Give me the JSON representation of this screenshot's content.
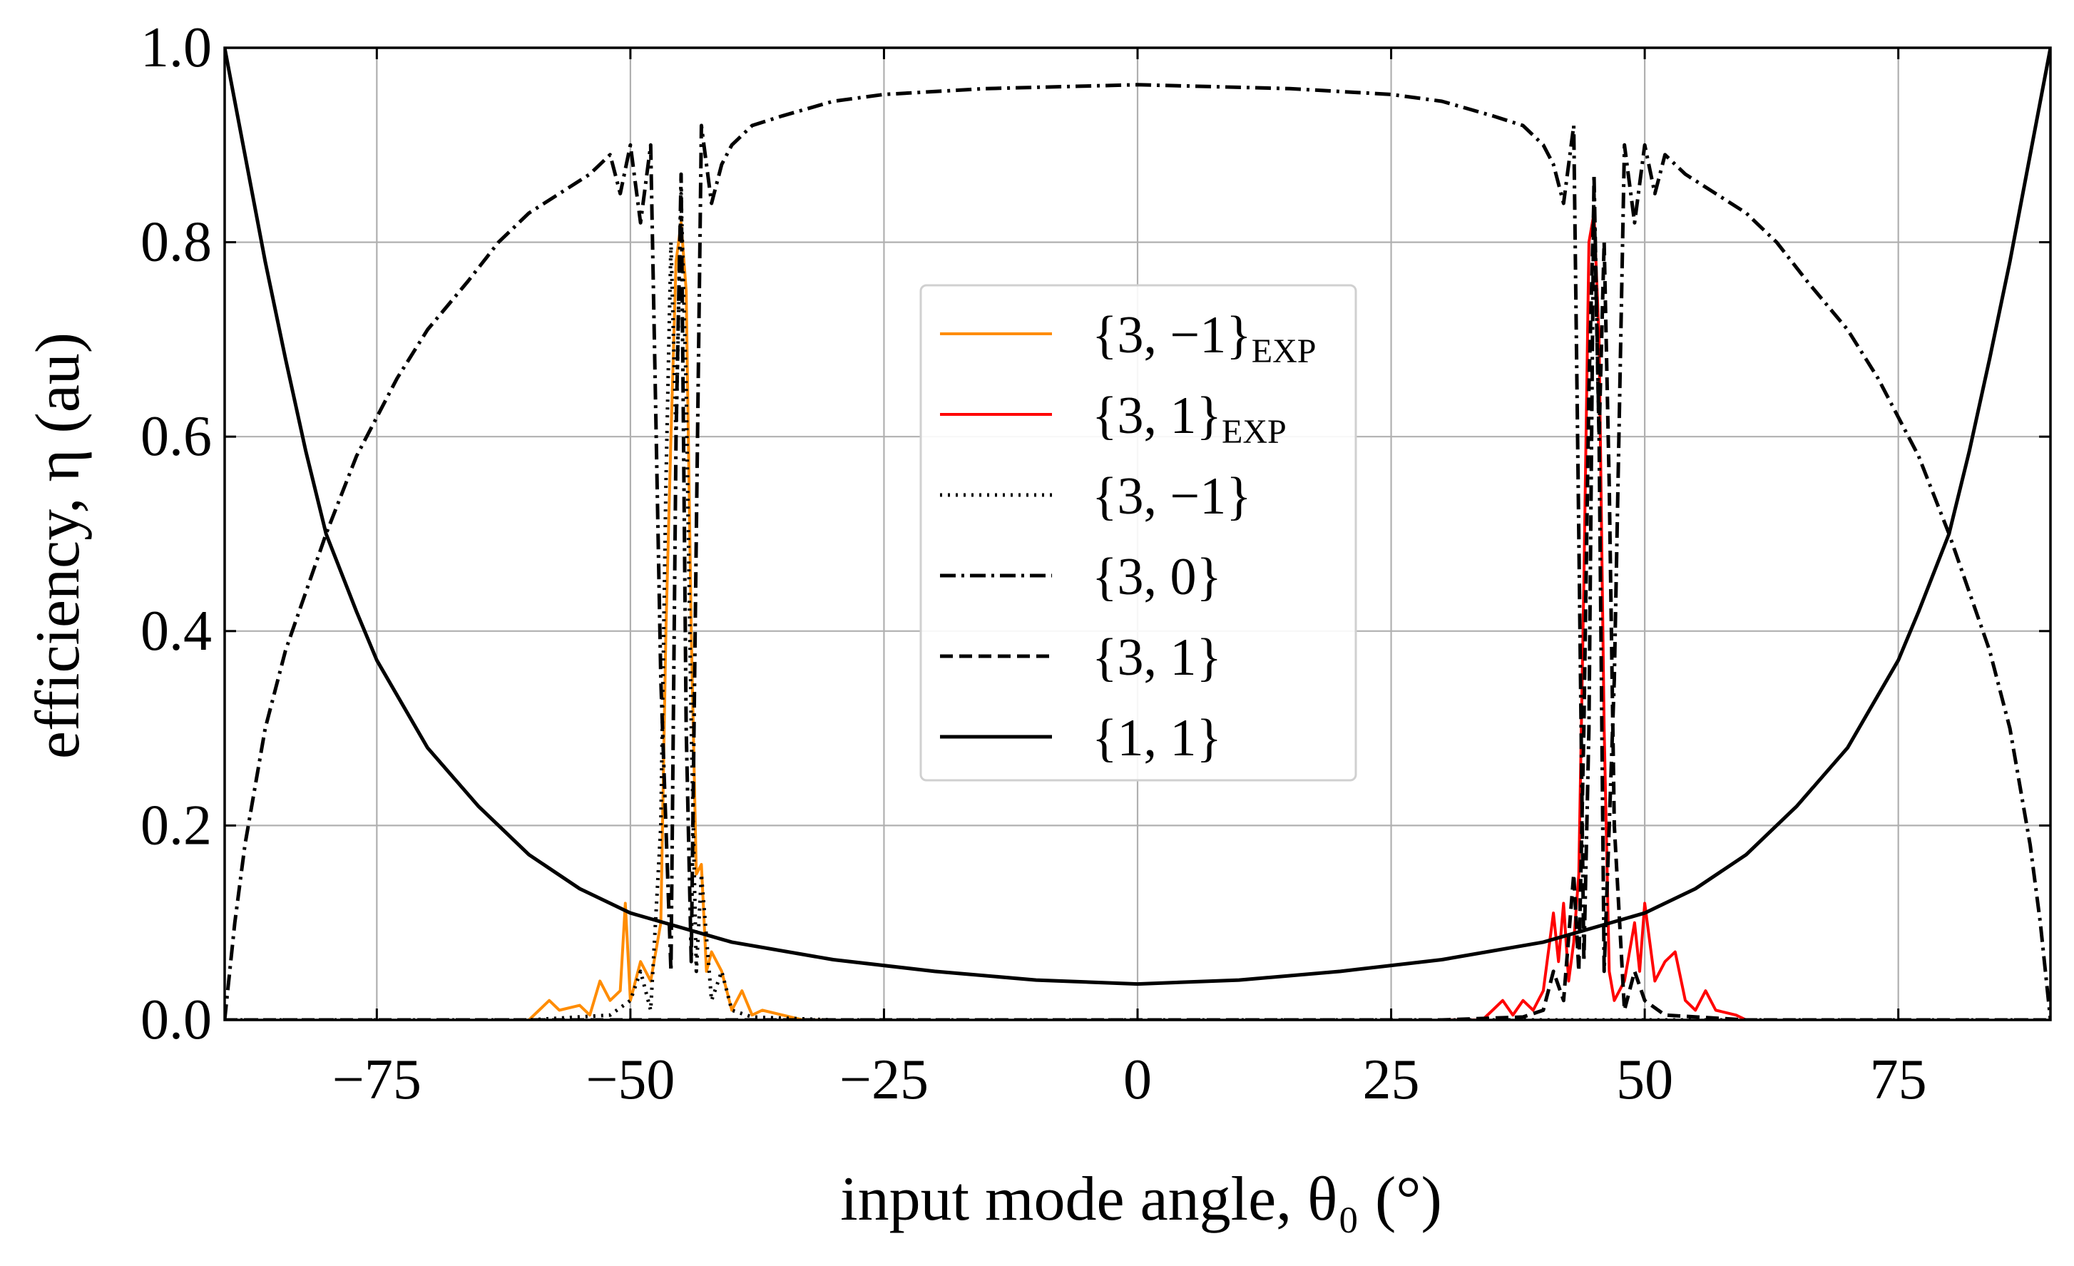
{
  "chart_data": {
    "type": "line",
    "x_label": "input mode angle, θ₀ (°)",
    "y_label": "efficiency, η (au)",
    "xlim": [
      -90,
      90
    ],
    "ylim": [
      0,
      1
    ],
    "xticks": [
      {
        "value": -75,
        "label": "−75"
      },
      {
        "value": -50,
        "label": "−50"
      },
      {
        "value": -25,
        "label": "−25"
      },
      0,
      25,
      50,
      75
    ],
    "yticks": [
      {
        "value": 0,
        "label": "0.0"
      },
      0.2,
      0.4,
      0.6,
      0.8,
      {
        "value": 1,
        "label": "1.0"
      }
    ],
    "grid": true,
    "legend_position": "center",
    "series": [
      {
        "name": "{3, −1}",
        "name_subscript": "EXP",
        "color": "#ff8c00",
        "linestyle": "solid",
        "x": [
          -60,
          -58,
          -57,
          -55,
          -54,
          -53,
          -52,
          -51,
          -50.5,
          -50,
          -49,
          -48,
          -47,
          -46.5,
          -46,
          -45.5,
          -45,
          -44.5,
          -44,
          -43.5,
          -43,
          -42.5,
          -42,
          -41,
          -40,
          -39,
          -38,
          -37,
          -35,
          -33,
          -30
        ],
        "values": [
          0,
          0.02,
          0.01,
          0.015,
          0.005,
          0.04,
          0.02,
          0.03,
          0.12,
          0.02,
          0.06,
          0.04,
          0.1,
          0.4,
          0.6,
          0.78,
          0.82,
          0.75,
          0.4,
          0.15,
          0.16,
          0.05,
          0.07,
          0.05,
          0.01,
          0.03,
          0.005,
          0.01,
          0.005,
          0,
          0
        ]
      },
      {
        "name": "{3, 1}",
        "name_subscript": "EXP",
        "color": "#ff0000",
        "linestyle": "solid",
        "x": [
          30,
          34,
          35,
          36,
          37,
          38,
          39,
          40,
          41,
          41.5,
          42,
          42.5,
          43,
          43.5,
          44,
          44.5,
          45,
          45.5,
          46,
          46.5,
          47,
          48,
          49,
          49.5,
          50,
          51,
          52,
          53,
          54,
          55,
          56,
          57,
          59,
          60
        ],
        "values": [
          0,
          0,
          0.01,
          0.02,
          0.005,
          0.02,
          0.01,
          0.03,
          0.11,
          0.06,
          0.12,
          0.04,
          0.08,
          0.15,
          0.45,
          0.8,
          0.83,
          0.7,
          0.3,
          0.05,
          0.02,
          0.04,
          0.1,
          0.05,
          0.12,
          0.04,
          0.06,
          0.07,
          0.02,
          0.01,
          0.03,
          0.01,
          0.005,
          0
        ]
      },
      {
        "name": "{3, −1}",
        "color": "#000000",
        "linestyle": "dotted",
        "x": [
          -90,
          -60,
          -52,
          -50,
          -49,
          -48,
          -47,
          -46.5,
          -46,
          -45.5,
          -45,
          -44.5,
          -44,
          -43.5,
          -43,
          -42,
          -41,
          -40,
          -38,
          -30,
          0,
          90
        ],
        "values": [
          0,
          0,
          0.005,
          0.02,
          0.05,
          0.01,
          0.2,
          0.55,
          0.8,
          0.6,
          0.85,
          0.65,
          0.3,
          0.05,
          0.15,
          0.02,
          0.05,
          0.01,
          0.003,
          0,
          0,
          0
        ]
      },
      {
        "name": "{3, 0}",
        "color": "#000000",
        "linestyle": "dashdot",
        "x": [
          -90,
          -89,
          -88,
          -86,
          -84,
          -82,
          -80,
          -77,
          -73,
          -70,
          -66,
          -63,
          -60,
          -57,
          -54,
          -52,
          -51,
          -50,
          -49,
          -48,
          -47,
          -46,
          -45.5,
          -45,
          -44.5,
          -44,
          -43.5,
          -43,
          -42,
          -41,
          -40,
          -38,
          -35,
          -30,
          -25,
          -15,
          0,
          15,
          25,
          30,
          35,
          38,
          40,
          41,
          42,
          43,
          43.5,
          44,
          44.5,
          45,
          45.5,
          46,
          47,
          48,
          49,
          50,
          51,
          52,
          54,
          57,
          60,
          63,
          66,
          70,
          73,
          77,
          80,
          82,
          84,
          86,
          88,
          89,
          90
        ],
        "values": [
          0,
          0.1,
          0.18,
          0.3,
          0.38,
          0.44,
          0.5,
          0.58,
          0.66,
          0.71,
          0.76,
          0.8,
          0.83,
          0.85,
          0.87,
          0.89,
          0.85,
          0.9,
          0.82,
          0.9,
          0.35,
          0.05,
          0.6,
          0.87,
          0.3,
          0.06,
          0.5,
          0.92,
          0.84,
          0.88,
          0.9,
          0.92,
          0.93,
          0.945,
          0.952,
          0.958,
          0.962,
          0.958,
          0.952,
          0.945,
          0.93,
          0.92,
          0.9,
          0.88,
          0.84,
          0.92,
          0.5,
          0.06,
          0.3,
          0.87,
          0.6,
          0.05,
          0.35,
          0.9,
          0.82,
          0.9,
          0.85,
          0.89,
          0.87,
          0.85,
          0.83,
          0.8,
          0.76,
          0.71,
          0.66,
          0.58,
          0.5,
          0.44,
          0.38,
          0.3,
          0.18,
          0.1,
          0
        ]
      },
      {
        "name": "{3, 1}",
        "color": "#000000",
        "linestyle": "dashed",
        "x": [
          -90,
          0,
          30,
          38,
          40,
          41,
          42,
          43,
          43.5,
          44,
          44.5,
          45,
          45.5,
          46,
          46.5,
          47,
          48,
          49,
          50,
          52,
          60,
          90
        ],
        "values": [
          0,
          0,
          0,
          0.003,
          0.01,
          0.05,
          0.02,
          0.15,
          0.05,
          0.3,
          0.65,
          0.85,
          0.6,
          0.8,
          0.55,
          0.2,
          0.01,
          0.05,
          0.02,
          0.005,
          0,
          0
        ]
      },
      {
        "name": "{1, 1}",
        "color": "#000000",
        "linestyle": "solid",
        "x": [
          -90,
          -88,
          -86,
          -84,
          -82,
          -80,
          -77,
          -75,
          -70,
          -65,
          -60,
          -55,
          -50,
          -45,
          -40,
          -30,
          -20,
          -10,
          0,
          10,
          20,
          30,
          40,
          45,
          50,
          55,
          60,
          65,
          70,
          75,
          77,
          80,
          82,
          84,
          86,
          88,
          90
        ],
        "values": [
          1.0,
          0.89,
          0.78,
          0.68,
          0.585,
          0.5,
          0.42,
          0.37,
          0.28,
          0.22,
          0.17,
          0.135,
          0.11,
          0.095,
          0.08,
          0.062,
          0.05,
          0.041,
          0.037,
          0.041,
          0.05,
          0.062,
          0.08,
          0.095,
          0.11,
          0.135,
          0.17,
          0.22,
          0.28,
          0.37,
          0.42,
          0.5,
          0.585,
          0.68,
          0.78,
          0.89,
          1.0
        ]
      }
    ]
  }
}
